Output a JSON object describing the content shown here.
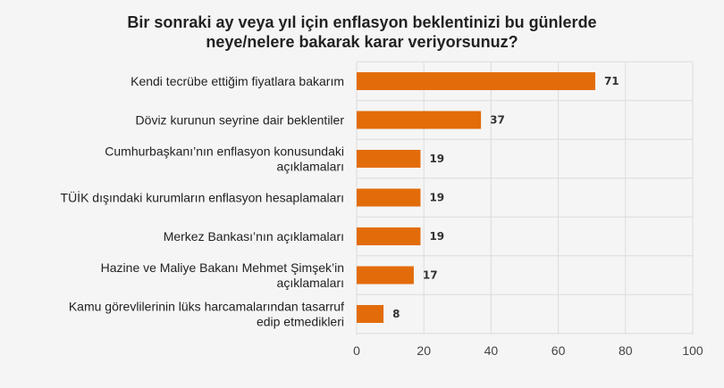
{
  "chart_data": {
    "type": "bar",
    "orientation": "horizontal",
    "title_lines": [
      "Bir sonraki ay veya yıl için enflasyon beklentinizi bu günlerde",
      "neye/nelere bakarak karar veriyorsunuz?"
    ],
    "categories": [
      [
        "Kendi tecrübe ettiğim fiyatlara bakarım"
      ],
      [
        "Döviz kurunun seyrine dair beklentiler"
      ],
      [
        "Cumhurbaşkanı’nın enflasyon konusundaki",
        "açıklamaları"
      ],
      [
        "TÜİK dışındaki kurumların enflasyon hesaplamaları"
      ],
      [
        "Merkez Bankası’nın açıklamaları"
      ],
      [
        "Hazine ve Maliye Bakanı Mehmet Şimşek’in",
        "açıklamaları"
      ],
      [
        "Kamu görevlilerinin lüks harcamalarından tasarruf",
        "edip etmedikleri"
      ]
    ],
    "values": [
      71,
      37,
      19,
      19,
      19,
      17,
      8
    ],
    "value_labels": [
      "71",
      "37",
      "19",
      "19",
      "19",
      "17",
      "8"
    ],
    "xlim": [
      0,
      100
    ],
    "xticks": [
      0,
      20,
      40,
      60,
      80,
      100
    ],
    "xtick_labels": [
      "0",
      "20",
      "40",
      "60",
      "80",
      "100"
    ],
    "grid": "vertical",
    "colors": {
      "bar": "#e36c0a",
      "grid": "#dcdcdc",
      "background": "#f5f5f5"
    }
  }
}
